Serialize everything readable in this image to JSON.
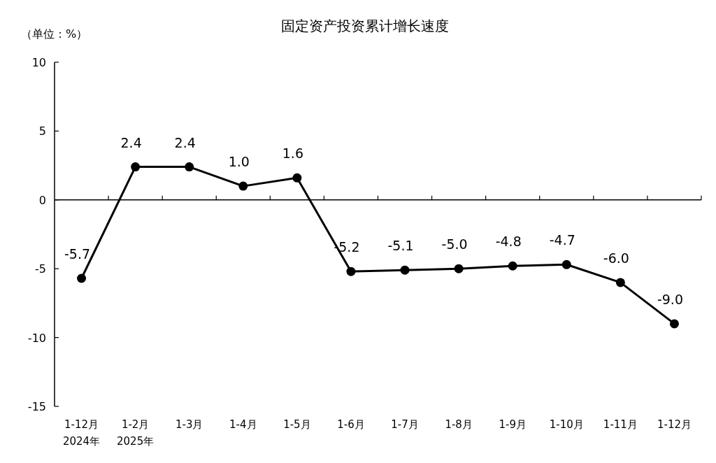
{
  "chart_data": {
    "type": "line",
    "title": "固定资产投资累计增长速度",
    "annotations": [
      "（单位：%）"
    ],
    "categories": [
      "1-12月\n2024年",
      "1-2月\n2025年",
      "1-3月",
      "1-4月",
      "1-5月",
      "1-6月",
      "1-7月",
      "1-8月",
      "1-9月",
      "1-10月",
      "1-11月",
      "1-12月"
    ],
    "values": [
      -5.7,
      2.4,
      2.4,
      1.0,
      1.6,
      -5.2,
      -5.1,
      -5.0,
      -4.8,
      -4.7,
      -6.0,
      -9.0
    ],
    "value_labels": [
      "-5.7",
      "2.4",
      "2.4",
      "1.0",
      "1.6",
      "-5.2",
      "-5.1",
      "-5.0",
      "-4.8",
      "-4.7",
      "-6.0",
      "-9.0"
    ],
    "color": "#000000",
    "marker": "circle",
    "line_style": "solid",
    "ylim": [
      -15,
      10
    ],
    "yticks": [
      -15,
      -10,
      -5,
      0,
      5,
      10
    ]
  }
}
